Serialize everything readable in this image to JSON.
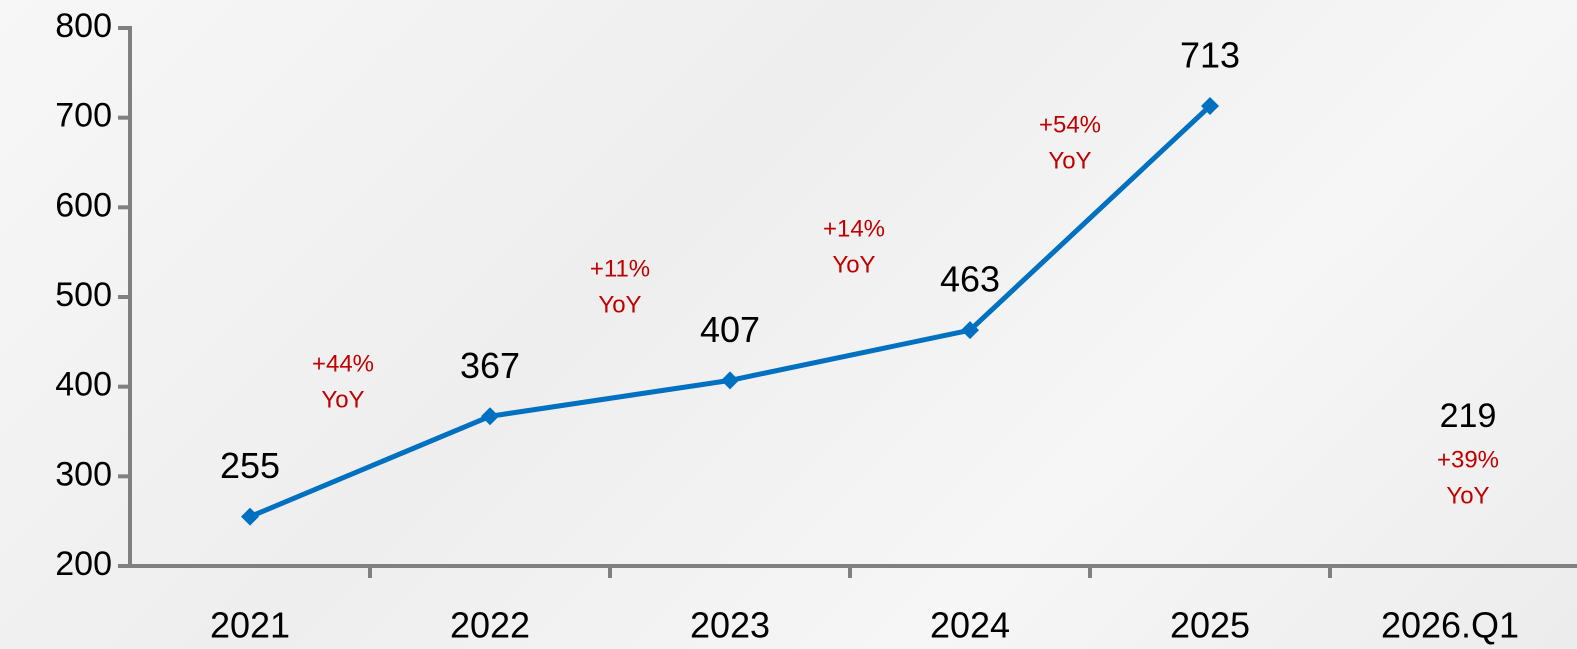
{
  "chart_data": {
    "type": "line",
    "categories": [
      "2021",
      "2022",
      "2023",
      "2024",
      "2025",
      "2026.Q1"
    ],
    "series": [
      {
        "name": "Value",
        "color": "#0070c0",
        "values": [
          255,
          367,
          407,
          463,
          713,
          null
        ]
      }
    ],
    "ylim": [
      200,
      800
    ],
    "yticks": [
      200,
      300,
      400,
      500,
      600,
      700,
      800
    ],
    "annotations": [
      [
        "+44%",
        "YoY"
      ],
      [
        "+11%",
        "YoY"
      ],
      [
        "+14%",
        "YoY"
      ],
      [
        "+54%",
        "YoY"
      ],
      [
        "+39%",
        "YoY"
      ]
    ],
    "annotation_color": "#c00000",
    "quarter_label": "219"
  }
}
